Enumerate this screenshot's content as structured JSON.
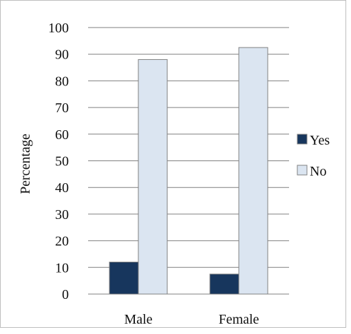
{
  "chart_data": {
    "type": "bar",
    "categories": [
      "Male",
      "Female"
    ],
    "series": [
      {
        "name": "Yes",
        "values": [
          12,
          7.5
        ],
        "color": "#17365d"
      },
      {
        "name": "No",
        "values": [
          88,
          92.5
        ],
        "color": "#dbe5f1"
      }
    ],
    "ylabel": "Percentage",
    "ylim": [
      0,
      100
    ],
    "yticks": [
      0,
      10,
      20,
      30,
      40,
      50,
      60,
      70,
      80,
      90,
      100
    ],
    "grid": true,
    "legend": "right",
    "bar_outline_color": "#7f7f7f",
    "gridline_color": "#7f7f7f"
  }
}
